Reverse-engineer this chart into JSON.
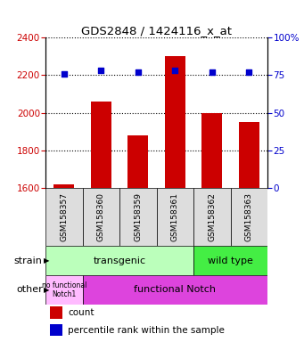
{
  "title": "GDS2848 / 1424116_x_at",
  "samples": [
    "GSM158357",
    "GSM158360",
    "GSM158359",
    "GSM158361",
    "GSM158362",
    "GSM158363"
  ],
  "counts": [
    1620,
    2060,
    1880,
    2300,
    2000,
    1950
  ],
  "percentiles": [
    76,
    78,
    77,
    78,
    77,
    77
  ],
  "ylim_left": [
    1600,
    2400
  ],
  "ylim_right": [
    0,
    100
  ],
  "yticks_left": [
    1600,
    1800,
    2000,
    2200,
    2400
  ],
  "yticks_right": [
    0,
    25,
    50,
    75,
    100
  ],
  "bar_color": "#cc0000",
  "dot_color": "#0000cc",
  "strain_transgenic_color": "#bbffbb",
  "strain_wildtype_color": "#44ee44",
  "other_nofunc_color": "#ffbbff",
  "other_func_color": "#dd44dd",
  "tick_label_color_left": "#cc0000",
  "tick_label_color_right": "#0000cc",
  "bar_width": 0.55,
  "n_samples": 6,
  "transgenic_count": 4,
  "wildtype_count": 2,
  "nofunc_count": 1,
  "func_count": 5
}
